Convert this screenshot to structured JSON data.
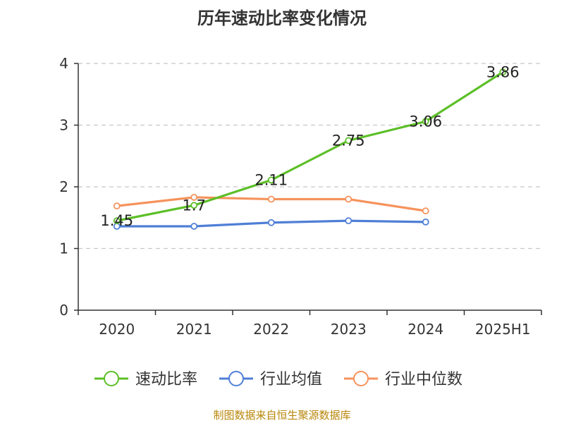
{
  "title": "历年速动比率变化情况",
  "source": "制图数据来自恒生聚源数据库",
  "chart_data": {
    "type": "line",
    "categories": [
      "2020",
      "2021",
      "2022",
      "2023",
      "2024",
      "2025H1"
    ],
    "ylim": [
      0,
      4
    ],
    "yticks": [
      0,
      1,
      2,
      3,
      4
    ],
    "grid": true,
    "legend_position": "bottom",
    "series": [
      {
        "name": "速动比率",
        "color": "#5cbf27",
        "values": [
          1.45,
          1.7,
          2.11,
          2.75,
          3.06,
          3.86
        ],
        "labels": [
          "1.45",
          "1.7",
          "2.11",
          "2.75",
          "3.06",
          "3.86"
        ]
      },
      {
        "name": "行业均值",
        "color": "#4f7fd6",
        "values": [
          1.36,
          1.36,
          1.42,
          1.45,
          1.43,
          null
        ]
      },
      {
        "name": "行业中位数",
        "color": "#f5935c",
        "values": [
          1.69,
          1.83,
          1.8,
          1.8,
          1.61,
          null
        ]
      }
    ]
  }
}
